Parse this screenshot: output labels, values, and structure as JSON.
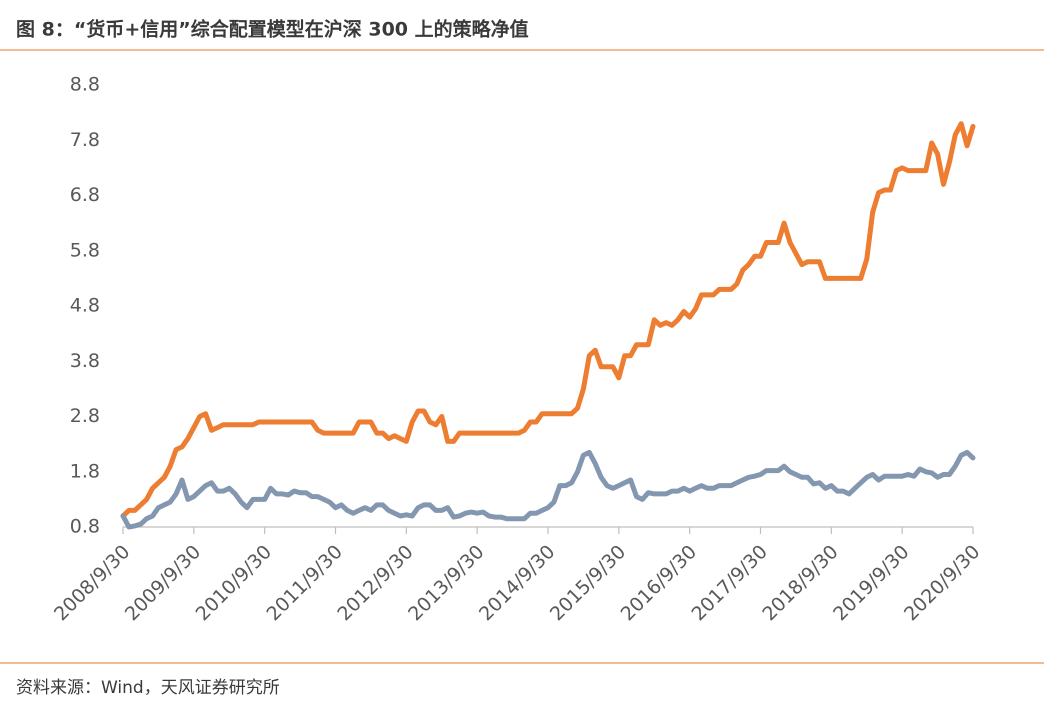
{
  "chart_data": {
    "type": "line",
    "title": "图 8：“货币+信用”综合配置模型在沪深 300 上的策略净值",
    "source": "资料来源：Wind，天风证券研究所",
    "categories": [
      "2008/9/30",
      null,
      null,
      null,
      null,
      null,
      null,
      null,
      null,
      null,
      null,
      null,
      "2009/9/30",
      null,
      null,
      null,
      null,
      null,
      null,
      null,
      null,
      null,
      null,
      null,
      "2010/9/30",
      null,
      null,
      null,
      null,
      null,
      null,
      null,
      null,
      null,
      null,
      null,
      "2011/9/30",
      null,
      null,
      null,
      null,
      null,
      null,
      null,
      null,
      null,
      null,
      null,
      "2012/9/30",
      null,
      null,
      null,
      null,
      null,
      null,
      null,
      null,
      null,
      null,
      null,
      "2013/9/30",
      null,
      null,
      null,
      null,
      null,
      null,
      null,
      null,
      null,
      null,
      null,
      "2014/9/30",
      null,
      null,
      null,
      null,
      null,
      null,
      null,
      null,
      null,
      null,
      null,
      "2015/9/30",
      null,
      null,
      null,
      null,
      null,
      null,
      null,
      null,
      null,
      null,
      null,
      "2016/9/30",
      null,
      null,
      null,
      null,
      null,
      null,
      null,
      null,
      null,
      null,
      null,
      "2017/9/30",
      null,
      null,
      null,
      null,
      null,
      null,
      null,
      null,
      null,
      null,
      null,
      "2018/9/30",
      null,
      null,
      null,
      null,
      null,
      null,
      null,
      null,
      null,
      null,
      null,
      "2019/9/30",
      null,
      null,
      null,
      null,
      null,
      null,
      null,
      null,
      null,
      null,
      null,
      "2020/9/30"
    ],
    "series": [
      {
        "color": "#ed7d31",
        "values": [
          1.0,
          1.1,
          1.1,
          1.2,
          1.3,
          1.5,
          1.6,
          1.7,
          1.9,
          2.2,
          2.25,
          2.4,
          2.6,
          2.8,
          2.85,
          2.55,
          2.6,
          2.65,
          2.65,
          2.65,
          2.65,
          2.65,
          2.65,
          2.7,
          2.7,
          2.7,
          2.7,
          2.7,
          2.7,
          2.7,
          2.7,
          2.7,
          2.7,
          2.55,
          2.5,
          2.5,
          2.5,
          2.5,
          2.5,
          2.5,
          2.7,
          2.7,
          2.7,
          2.5,
          2.5,
          2.4,
          2.45,
          2.4,
          2.35,
          2.7,
          2.9,
          2.9,
          2.7,
          2.65,
          2.8,
          2.35,
          2.35,
          2.5,
          2.5,
          2.5,
          2.5,
          2.5,
          2.5,
          2.5,
          2.5,
          2.5,
          2.5,
          2.5,
          2.55,
          2.7,
          2.7,
          2.85,
          2.85,
          2.85,
          2.85,
          2.85,
          2.85,
          2.95,
          3.3,
          3.9,
          4.0,
          3.7,
          3.7,
          3.7,
          3.5,
          3.9,
          3.9,
          4.1,
          4.1,
          4.1,
          4.55,
          4.45,
          4.5,
          4.45,
          4.55,
          4.7,
          4.6,
          4.75,
          5.0,
          5.0,
          5.0,
          5.1,
          5.1,
          5.1,
          5.2,
          5.45,
          5.55,
          5.7,
          5.7,
          5.95,
          5.95,
          5.95,
          6.3,
          5.95,
          5.75,
          5.55,
          5.6,
          5.6,
          5.6,
          5.3,
          5.3,
          5.3,
          5.3,
          5.3,
          5.3,
          5.3,
          5.65,
          6.5,
          6.85,
          6.9,
          6.9,
          7.25,
          7.3,
          7.25,
          7.25,
          7.25,
          7.25,
          7.75,
          7.55,
          7.0,
          7.4,
          7.9,
          8.1,
          7.7,
          8.05
        ]
      },
      {
        "color": "#8497b0",
        "values": [
          1.0,
          0.8,
          0.82,
          0.85,
          0.95,
          1.0,
          1.15,
          1.2,
          1.25,
          1.4,
          1.65,
          1.3,
          1.35,
          1.45,
          1.55,
          1.6,
          1.45,
          1.45,
          1.5,
          1.4,
          1.25,
          1.15,
          1.3,
          1.3,
          1.3,
          1.5,
          1.4,
          1.4,
          1.38,
          1.45,
          1.42,
          1.42,
          1.35,
          1.35,
          1.3,
          1.25,
          1.15,
          1.2,
          1.1,
          1.05,
          1.1,
          1.15,
          1.1,
          1.2,
          1.2,
          1.1,
          1.05,
          1.0,
          1.02,
          1.0,
          1.15,
          1.2,
          1.2,
          1.1,
          1.1,
          1.15,
          0.98,
          1.0,
          1.05,
          1.07,
          1.05,
          1.07,
          1.0,
          0.98,
          0.98,
          0.95,
          0.95,
          0.95,
          0.95,
          1.05,
          1.05,
          1.1,
          1.15,
          1.25,
          1.55,
          1.55,
          1.6,
          1.8,
          2.1,
          2.15,
          1.95,
          1.7,
          1.55,
          1.5,
          1.55,
          1.6,
          1.65,
          1.35,
          1.3,
          1.42,
          1.4,
          1.4,
          1.4,
          1.45,
          1.45,
          1.5,
          1.45,
          1.5,
          1.55,
          1.5,
          1.5,
          1.55,
          1.55,
          1.55,
          1.6,
          1.65,
          1.7,
          1.72,
          1.75,
          1.82,
          1.82,
          1.82,
          1.9,
          1.8,
          1.75,
          1.7,
          1.7,
          1.58,
          1.6,
          1.5,
          1.55,
          1.45,
          1.45,
          1.4,
          1.5,
          1.6,
          1.7,
          1.75,
          1.65,
          1.72,
          1.72,
          1.72,
          1.72,
          1.75,
          1.72,
          1.85,
          1.8,
          1.78,
          1.7,
          1.75,
          1.75,
          1.9,
          2.1,
          2.15,
          2.05
        ]
      }
    ],
    "ylim": [
      0.8,
      8.8
    ],
    "yticks": [
      0.8,
      1.8,
      2.8,
      3.8,
      4.8,
      5.8,
      6.8,
      7.8,
      8.8
    ],
    "grid": false
  }
}
